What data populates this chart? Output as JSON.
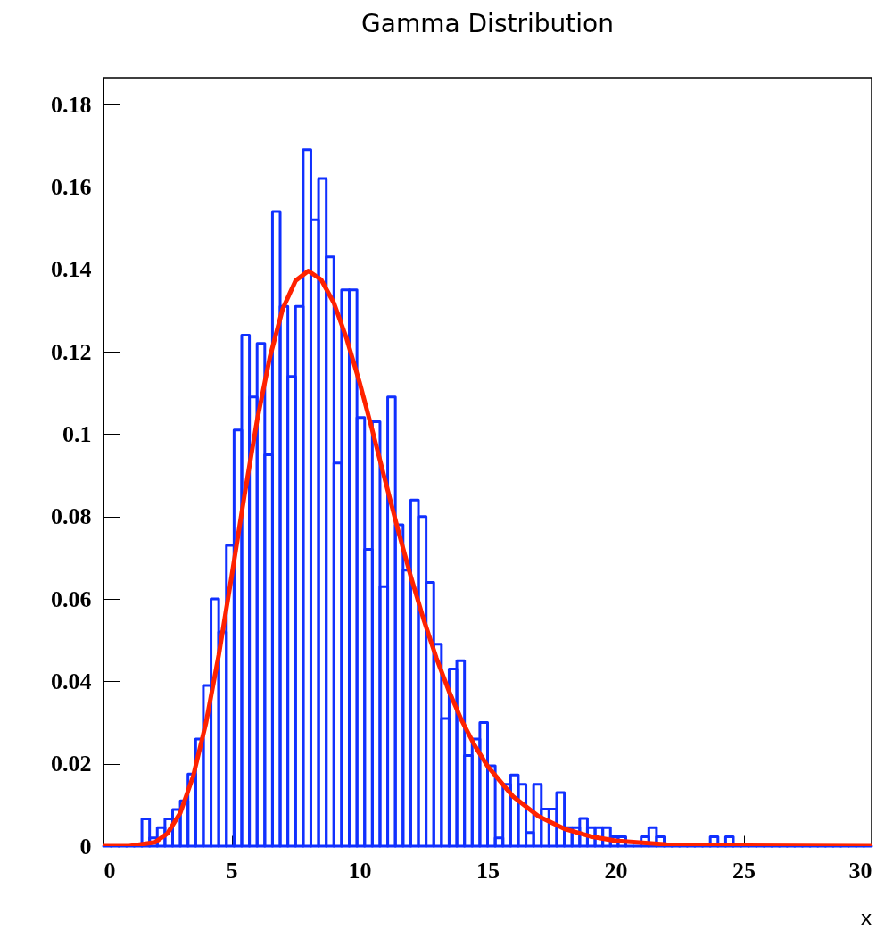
{
  "chart_data": {
    "type": "histogram",
    "title": "Gamma Distribution",
    "xlabel": "x",
    "color": "#1030ff",
    "bins": [
      0,
      0.3,
      0.6,
      0.9,
      1.2,
      1.5,
      1.8,
      2.1,
      2.4,
      2.7,
      3,
      3.3,
      3.6,
      3.9,
      4.2,
      4.5,
      4.8,
      5.1,
      5.4,
      5.7,
      6,
      6.3,
      6.6,
      6.9,
      7.2,
      7.5,
      7.8,
      8.1,
      8.4,
      8.7,
      9,
      9.3,
      9.6,
      9.9,
      10.2,
      10.5,
      10.8,
      11.1,
      11.4,
      11.7,
      12,
      12.3,
      12.6,
      12.9,
      13.2,
      13.5,
      13.8,
      14.1,
      14.4,
      14.7,
      15,
      15.3,
      15.6,
      15.9,
      16.2,
      16.5,
      16.8,
      17.1,
      17.4,
      17.7,
      18,
      18.3,
      18.6,
      18.9,
      19.2,
      19.5,
      19.8,
      20.1,
      20.4,
      20.7,
      21,
      21.3,
      21.6,
      21.9,
      22.2,
      22.5,
      22.8,
      23.1,
      23.4,
      23.7,
      24,
      24.3,
      24.6,
      24.9,
      25.2,
      25.5,
      25.8,
      26.1,
      26.4,
      26.7,
      27,
      27.3,
      27.6,
      27.9,
      28.2,
      28.5,
      28.8,
      29.1,
      29.4,
      29.7,
      30
    ],
    "values": [
      0,
      0,
      0,
      0,
      0,
      0.0066,
      0.002,
      0.0045,
      0.0066,
      0.0089,
      0.011,
      0.0175,
      0.026,
      0.039,
      0.06,
      0.052,
      0.073,
      0.101,
      0.124,
      0.109,
      0.122,
      0.095,
      0.154,
      0.131,
      0.114,
      0.131,
      0.169,
      0.152,
      0.162,
      0.143,
      0.093,
      0.135,
      0.135,
      0.104,
      0.072,
      0.103,
      0.063,
      0.109,
      0.078,
      0.067,
      0.084,
      0.08,
      0.064,
      0.049,
      0.031,
      0.043,
      0.045,
      0.022,
      0.026,
      0.03,
      0.0195,
      0.002,
      0.015,
      0.0173,
      0.015,
      0.0033,
      0.015,
      0.009,
      0.009,
      0.013,
      0.0045,
      0.0045,
      0.0067,
      0.0045,
      0.0045,
      0.0045,
      0.0023,
      0.0023,
      0,
      0,
      0.0023,
      0.0045,
      0.0023,
      0,
      0,
      0,
      0,
      0,
      0,
      0.0023,
      0,
      0.0023,
      0,
      0,
      0,
      0,
      0,
      0,
      0,
      0,
      0,
      0,
      0,
      0,
      0,
      0,
      0,
      0,
      0,
      0
    ],
    "series": [
      {
        "type": "line",
        "color": "#ff2200",
        "x": [
          0,
          1,
          2,
          2.5,
          3,
          3.5,
          4,
          4.5,
          5,
          5.5,
          6,
          6.5,
          7,
          7.5,
          8,
          8.5,
          9,
          9.5,
          10,
          10.5,
          11,
          11.5,
          12,
          12.5,
          13,
          13.5,
          14,
          14.5,
          15,
          16,
          17,
          18,
          19,
          20,
          22,
          25,
          30
        ],
        "values": [
          0,
          0,
          0.0009,
          0.0031,
          0.0081,
          0.0169,
          0.0298,
          0.0463,
          0.0653,
          0.0849,
          0.1033,
          0.1187,
          0.1304,
          0.1372,
          0.1396,
          0.1375,
          0.1318,
          0.1231,
          0.1126,
          0.1009,
          0.0888,
          0.0768,
          0.0655,
          0.0551,
          0.0457,
          0.0375,
          0.0304,
          0.0244,
          0.0194,
          0.012,
          0.0072,
          0.0042,
          0.0024,
          0.0013,
          0.0004,
          0.0001,
          0
        ]
      }
    ],
    "xlim": [
      0,
      30
    ],
    "ylim": [
      0,
      0.1865
    ],
    "xticks": [
      0,
      5,
      10,
      15,
      20,
      25,
      30
    ],
    "yticks": [
      0,
      0.02,
      0.04,
      0.06,
      0.08,
      0.1,
      0.12,
      0.14,
      0.16,
      0.18
    ]
  }
}
